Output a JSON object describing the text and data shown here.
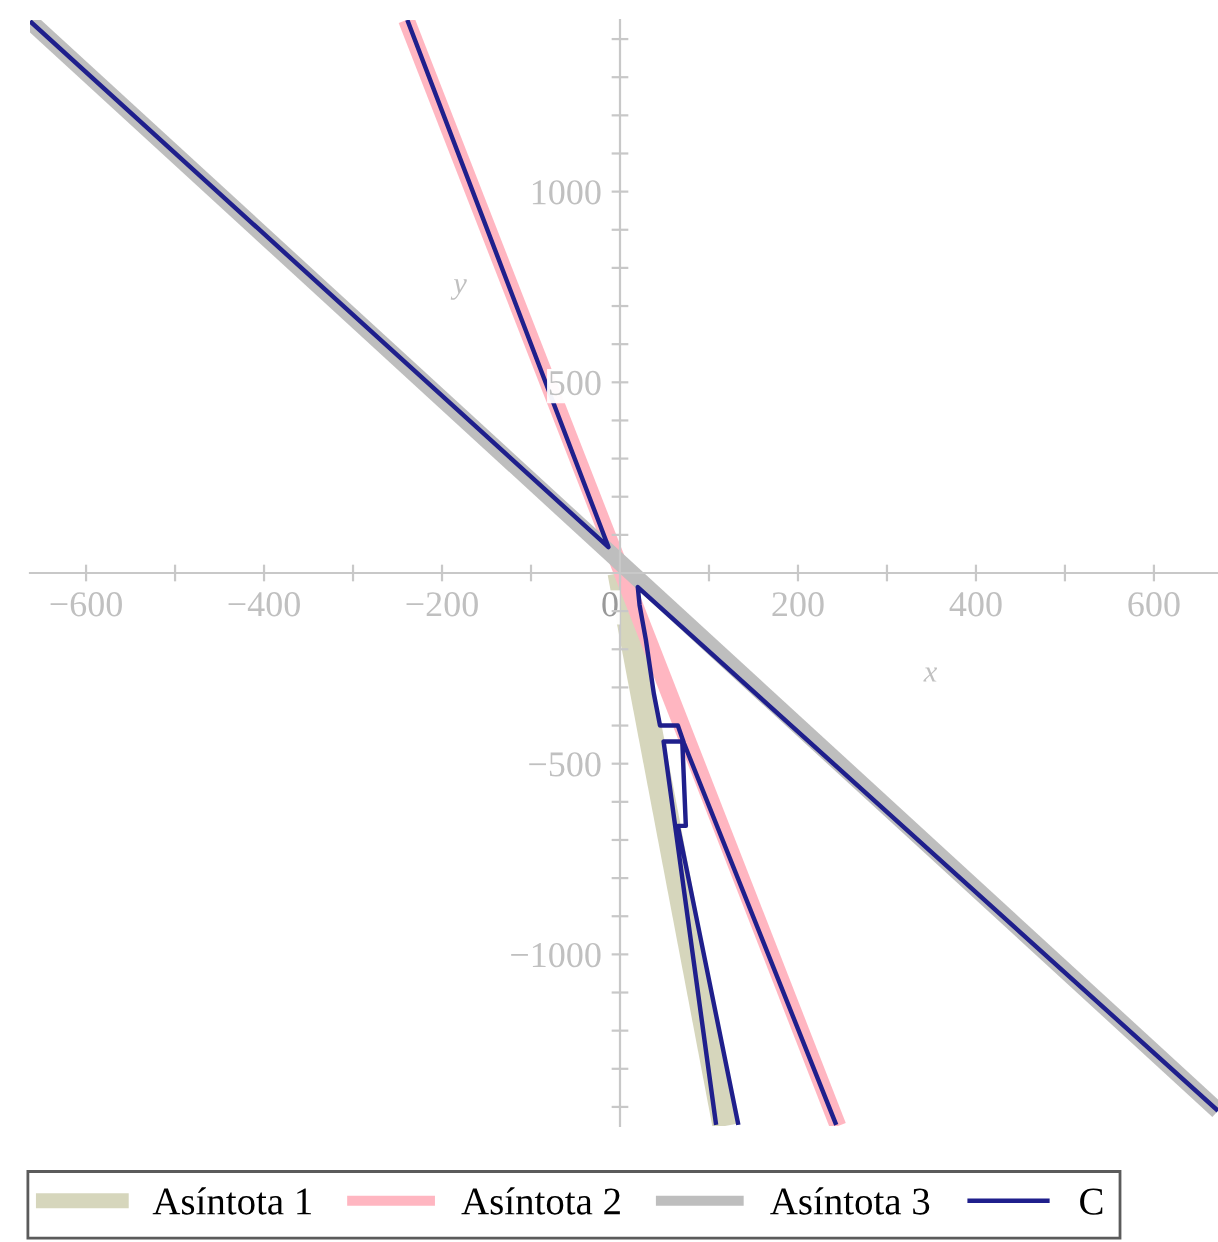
{
  "chart_data": {
    "type": "line",
    "xlabel": "x",
    "ylabel": "y",
    "xlim": [
      -663,
      672
    ],
    "ylim": [
      -1450,
      1450
    ],
    "xticks": [
      {
        "value": -600,
        "label": "−600"
      },
      {
        "value": -500,
        "label": null
      },
      {
        "value": -400,
        "label": "−400"
      },
      {
        "value": -300,
        "label": null
      },
      {
        "value": -200,
        "label": "−200"
      },
      {
        "value": -100,
        "label": null
      },
      0,
      {
        "value": 100,
        "label": null
      },
      200,
      {
        "value": 300,
        "label": null
      },
      400,
      {
        "value": 500,
        "label": null
      },
      600
    ],
    "yticks": [
      {
        "value": -1400,
        "label": null
      },
      {
        "value": -1300,
        "label": null
      },
      {
        "value": -1200,
        "label": null
      },
      {
        "value": -1100,
        "label": null
      },
      {
        "value": -1000,
        "label": "−1000"
      },
      {
        "value": -900,
        "label": null
      },
      {
        "value": -800,
        "label": null
      },
      {
        "value": -700,
        "label": null
      },
      {
        "value": -600,
        "label": null
      },
      {
        "value": -500,
        "label": "−500"
      },
      {
        "value": -400,
        "label": null
      },
      {
        "value": -300,
        "label": null
      },
      {
        "value": -200,
        "label": null
      },
      {
        "value": -100,
        "label": null
      },
      {
        "value": 100,
        "label": null
      },
      {
        "value": 200,
        "label": null
      },
      {
        "value": 300,
        "label": null
      },
      {
        "value": 400,
        "label": null
      },
      500,
      {
        "value": 600,
        "label": null
      },
      {
        "value": 700,
        "label": null
      },
      {
        "value": 800,
        "label": null
      },
      {
        "value": 900,
        "label": null
      },
      1000,
      {
        "value": 1100,
        "label": null
      },
      {
        "value": 1200,
        "label": null
      },
      {
        "value": 1300,
        "label": null
      },
      {
        "value": 1400,
        "label": null
      }
    ],
    "grid": false,
    "legend": "bottom",
    "series": [
      {
        "name": "Asíntota 1",
        "color": "#d6d6bc",
        "x": [
          0,
          118
        ],
        "values": [
          0,
          -1450
        ]
      },
      {
        "name": "Asíntota 2",
        "color": "#ffb6c1",
        "x": [
          -240,
          245
        ],
        "values": [
          1450,
          -1450
        ]
      },
      {
        "name": "Asíntota 3",
        "color": "#bebebe",
        "x": [
          -663,
          672
        ],
        "values": [
          1447,
          -1410
        ]
      },
      {
        "name": "C",
        "color": "#1f1f8c",
        "x": [
          -663,
          -13,
          -239,
          null,
          672,
          20,
          22,
          29,
          38,
          45,
          65,
          72,
          243,
          null,
          108,
          49,
          70,
          74,
          65,
          133
        ],
        "values": [
          1447,
          68,
          1450,
          null,
          -1410,
          -37,
          -84,
          -174,
          -316,
          -400,
          -400,
          -447,
          -1447,
          null,
          -1447,
          -442,
          -442,
          -663,
          -663,
          -1447
        ]
      }
    ]
  }
}
